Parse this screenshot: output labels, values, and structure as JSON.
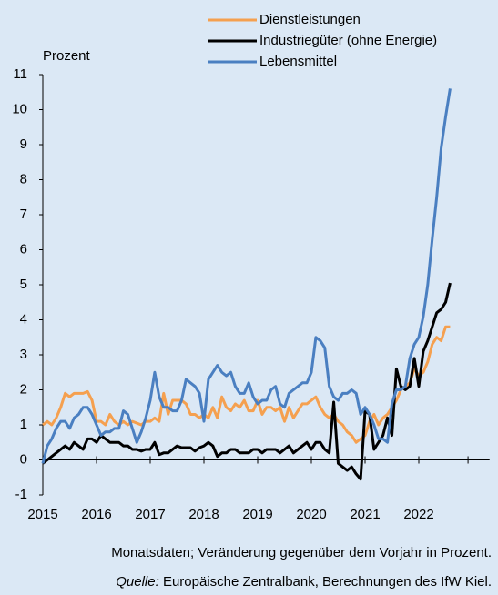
{
  "chart_data": {
    "type": "line",
    "y_label": "Prozent",
    "note": "Monatsdaten; Veränderung gegenüber dem Vorjahr in Prozent.",
    "source_label": "Quelle:",
    "source": "Europäische Zentralbank, Berechnungen des IfW Kiel.",
    "categories": [
      "2015",
      null,
      null,
      null,
      null,
      null,
      null,
      null,
      null,
      null,
      null,
      null,
      "2016",
      null,
      null,
      null,
      null,
      null,
      null,
      null,
      null,
      null,
      null,
      null,
      "2017",
      null,
      null,
      null,
      null,
      null,
      null,
      null,
      null,
      null,
      null,
      null,
      "2018",
      null,
      null,
      null,
      null,
      null,
      null,
      null,
      null,
      null,
      null,
      null,
      "2019",
      null,
      null,
      null,
      null,
      null,
      null,
      null,
      null,
      null,
      null,
      null,
      "2020",
      null,
      null,
      null,
      null,
      null,
      null,
      null,
      null,
      null,
      null,
      null,
      "2021",
      null,
      null,
      null,
      null,
      null,
      null,
      null,
      null,
      null,
      null,
      null,
      "2022",
      null,
      null,
      null,
      null,
      null,
      null,
      null
    ],
    "series": [
      {
        "name": "Dienstleistungen",
        "color": "#f5a04f",
        "values": [
          1.0,
          1.1,
          1.0,
          1.2,
          1.5,
          1.9,
          1.8,
          1.9,
          1.9,
          1.9,
          1.95,
          1.7,
          1.1,
          1.1,
          1.0,
          1.3,
          1.1,
          1.0,
          1.1,
          1.0,
          1.1,
          1.05,
          1.0,
          1.1,
          1.1,
          1.2,
          1.1,
          1.9,
          1.3,
          1.7,
          1.7,
          1.7,
          1.6,
          1.3,
          1.3,
          1.2,
          1.3,
          1.2,
          1.5,
          1.2,
          1.8,
          1.5,
          1.4,
          1.6,
          1.5,
          1.7,
          1.4,
          1.4,
          1.7,
          1.3,
          1.5,
          1.5,
          1.4,
          1.5,
          1.1,
          1.5,
          1.2,
          1.4,
          1.6,
          1.6,
          1.7,
          1.8,
          1.5,
          1.3,
          1.2,
          1.3,
          1.1,
          1.0,
          0.8,
          0.7,
          0.5,
          0.6,
          0.7,
          1.1,
          1.3,
          1.0,
          1.2,
          1.3,
          1.5,
          1.7,
          2.0,
          2.1,
          2.2,
          2.6,
          2.4,
          2.5,
          2.8,
          3.3,
          3.5,
          3.4,
          3.8,
          3.8
        ]
      },
      {
        "name": "Industriegüter (ohne Energie)",
        "color": "#000000",
        "values": [
          -0.1,
          0.0,
          0.1,
          0.2,
          0.3,
          0.4,
          0.3,
          0.5,
          0.4,
          0.3,
          0.6,
          0.6,
          0.5,
          0.7,
          0.6,
          0.5,
          0.5,
          0.5,
          0.4,
          0.4,
          0.3,
          0.3,
          0.25,
          0.3,
          0.3,
          0.5,
          0.15,
          0.2,
          0.2,
          0.3,
          0.4,
          0.35,
          0.35,
          0.35,
          0.25,
          0.35,
          0.4,
          0.5,
          0.4,
          0.1,
          0.2,
          0.2,
          0.3,
          0.3,
          0.2,
          0.2,
          0.2,
          0.3,
          0.3,
          0.2,
          0.3,
          0.3,
          0.3,
          0.2,
          0.3,
          0.4,
          0.2,
          0.3,
          0.4,
          0.5,
          0.3,
          0.5,
          0.5,
          0.3,
          0.2,
          1.65,
          -0.1,
          -0.2,
          -0.3,
          -0.2,
          -0.4,
          -0.55,
          1.4,
          1.3,
          0.3,
          0.5,
          0.7,
          1.2,
          0.7,
          2.6,
          2.1,
          2.0,
          2.1,
          2.9,
          2.1,
          3.1,
          3.4,
          3.8,
          4.2,
          4.3,
          4.5,
          5.05
        ]
      },
      {
        "name": "Lebensmittel",
        "color": "#4a7fc1",
        "values": [
          -0.1,
          0.4,
          0.6,
          0.9,
          1.1,
          1.1,
          0.9,
          1.2,
          1.3,
          1.5,
          1.5,
          1.3,
          1.0,
          0.7,
          0.8,
          0.8,
          0.9,
          0.9,
          1.4,
          1.3,
          0.9,
          0.5,
          0.8,
          1.2,
          1.7,
          2.5,
          1.8,
          1.5,
          1.5,
          1.4,
          1.4,
          1.7,
          2.3,
          2.2,
          2.1,
          1.9,
          1.1,
          2.3,
          2.5,
          2.7,
          2.5,
          2.4,
          2.5,
          2.1,
          1.9,
          1.9,
          2.2,
          1.8,
          1.6,
          1.7,
          1.7,
          2.0,
          2.1,
          1.6,
          1.5,
          1.9,
          2.0,
          2.1,
          2.2,
          2.2,
          2.5,
          3.5,
          3.4,
          3.2,
          2.1,
          1.8,
          1.7,
          1.9,
          1.9,
          2.0,
          1.9,
          1.3,
          1.5,
          1.3,
          1.0,
          0.6,
          0.6,
          0.5,
          1.6,
          2.0,
          2.0,
          2.1,
          2.9,
          3.3,
          3.5,
          4.1,
          5.0,
          6.3,
          7.5,
          8.9,
          9.8,
          10.6
        ]
      }
    ],
    "ylim": [
      -1,
      11
    ],
    "yticks": [
      -1,
      0,
      1,
      2,
      3,
      4,
      5,
      6,
      7,
      8,
      9,
      10,
      11
    ],
    "grid": false,
    "legend": "top"
  }
}
